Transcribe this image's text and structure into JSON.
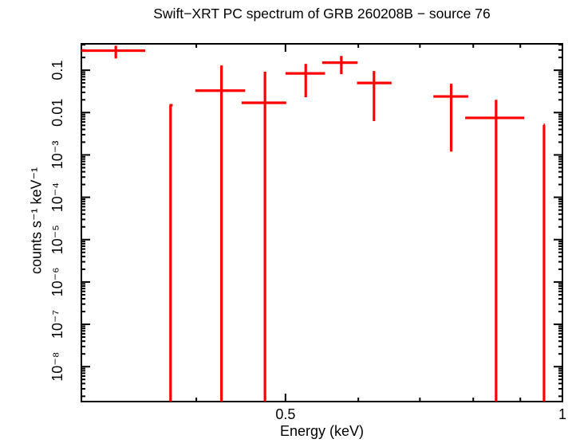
{
  "figure": {
    "background": "#ffffff",
    "frame_color": "#000000",
    "data_color": "#ff0000",
    "text_color": "#000000"
  },
  "chart_data": {
    "type": "scatter",
    "subtype": "xy-errorbar-spectrum",
    "title": "Swift−XRT PC spectrum of GRB 260208B − source 76",
    "xlabel": "Energy (keV)",
    "ylabel": "counts s⁻¹ keV⁻¹",
    "xscale": "log",
    "yscale": "log",
    "xlim": [
      0.3,
      1.0
    ],
    "ylim": [
      1.5e-09,
      0.42
    ],
    "grid": false,
    "legend": null,
    "x_ticks": {
      "major": [
        {
          "value": 0.5,
          "label": "0.5"
        },
        {
          "value": 1.0,
          "label": "1"
        }
      ],
      "minor": [
        0.4,
        0.6,
        0.7,
        0.8,
        0.9
      ]
    },
    "y_ticks": {
      "major": [
        {
          "value": 0.1,
          "label": "0.1"
        },
        {
          "value": 0.01,
          "label": "0.01"
        },
        {
          "value": 0.001,
          "label": "10⁻³"
        },
        {
          "value": 0.0001,
          "label": "10⁻⁴"
        },
        {
          "value": 1e-05,
          "label": "10⁻⁵"
        },
        {
          "value": 1e-06,
          "label": "10⁻⁶"
        },
        {
          "value": 1e-07,
          "label": "10⁻⁷"
        },
        {
          "value": 1e-08,
          "label": "10⁻⁸"
        }
      ],
      "minor": "log-decade-subdivisions"
    },
    "points": [
      {
        "x": 0.327,
        "x_min": 0.3,
        "x_max": 0.352,
        "y": 0.29,
        "y_upper": 0.38,
        "y_lower": 0.19
      },
      {
        "x": 0.375,
        "x_min": 0.374,
        "x_max": 0.377,
        "y": 0.0149,
        "y_upper": 0.0149,
        "y_lower": null
      },
      {
        "x": 0.426,
        "x_min": 0.399,
        "x_max": 0.452,
        "y": 0.033,
        "y_upper": 0.13,
        "y_lower": null
      },
      {
        "x": 0.475,
        "x_min": 0.448,
        "x_max": 0.501,
        "y": 0.017,
        "y_upper": 0.092,
        "y_lower": null
      },
      {
        "x": 0.526,
        "x_min": 0.5,
        "x_max": 0.552,
        "y": 0.084,
        "y_upper": 0.141,
        "y_lower": 0.023
      },
      {
        "x": 0.575,
        "x_min": 0.548,
        "x_max": 0.599,
        "y": 0.151,
        "y_upper": 0.217,
        "y_lower": 0.081
      },
      {
        "x": 0.624,
        "x_min": 0.598,
        "x_max": 0.652,
        "y": 0.05,
        "y_upper": 0.096,
        "y_lower": 0.0063
      },
      {
        "x": 0.757,
        "x_min": 0.724,
        "x_max": 0.79,
        "y": 0.024,
        "y_upper": 0.048,
        "y_lower": 0.0012
      },
      {
        "x": 0.847,
        "x_min": 0.784,
        "x_max": 0.909,
        "y": 0.0075,
        "y_upper": 0.02,
        "y_lower": null
      },
      {
        "x": 0.955,
        "x_min": 0.954,
        "x_max": 0.957,
        "y": 0.0051,
        "y_upper": 0.0051,
        "y_lower": null
      }
    ]
  }
}
